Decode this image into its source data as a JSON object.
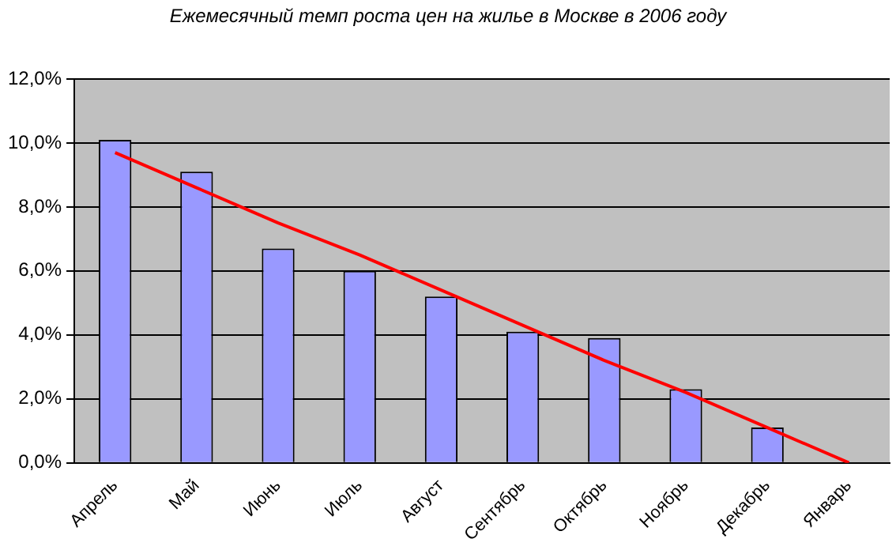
{
  "chart_data": {
    "type": "bar",
    "title": "Ежемесячный темп роста цен на жилье в Москве в 2006 году",
    "categories": [
      "Апрель",
      "Май",
      "Июнь",
      "Июль",
      "Август",
      "Сентябрь",
      "Октябрь",
      "Ноябрь",
      "Декабрь",
      "Январь"
    ],
    "series": [
      {
        "color": "#9999ff",
        "values": [
          10.1,
          9.1,
          6.7,
          6.0,
          5.2,
          4.1,
          3.9,
          2.3,
          1.1,
          null
        ]
      },
      {
        "type": "line",
        "color": "#ff0000",
        "values": [
          9.7,
          8.6,
          7.5,
          6.5,
          5.4,
          4.3,
          3.2,
          2.2,
          1.1,
          0.0
        ]
      }
    ],
    "ylim": [
      0,
      12
    ],
    "yticks": [
      {
        "value": 0,
        "label": "0,0%"
      },
      {
        "value": 2,
        "label": "2,0%"
      },
      {
        "value": 4,
        "label": "4,0%"
      },
      {
        "value": 6,
        "label": "6,0%"
      },
      {
        "value": 8,
        "label": "8,0%"
      },
      {
        "value": 10,
        "label": "10,0%"
      },
      {
        "value": 12,
        "label": "12,0%"
      }
    ],
    "grid": "y",
    "legend": false,
    "marker": "none",
    "line_style": "solid"
  }
}
